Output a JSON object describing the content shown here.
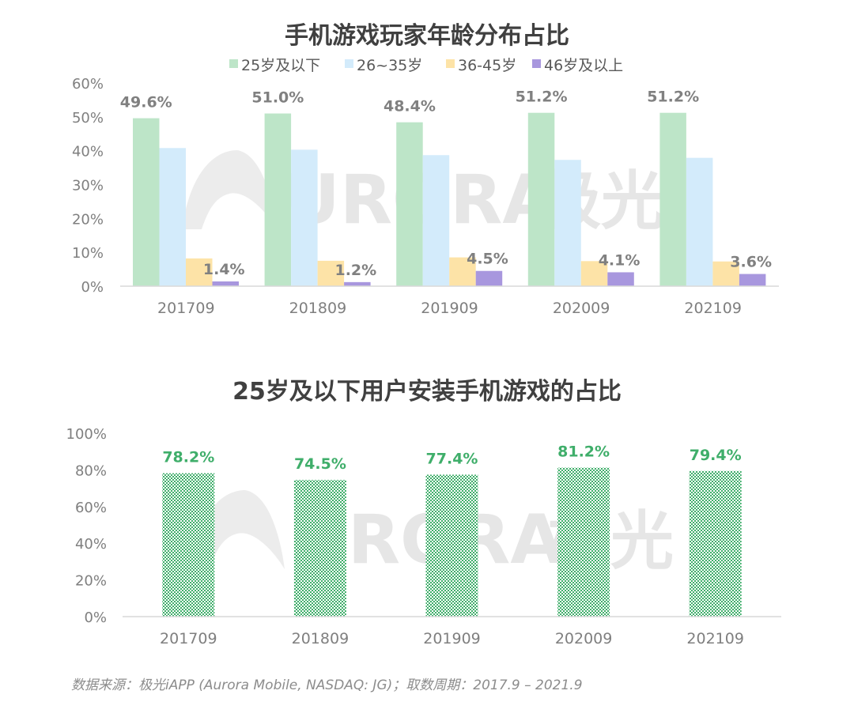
{
  "chart_data": [
    {
      "type": "bar",
      "title": "手机游戏玩家年龄分布占比",
      "categories": [
        "201709",
        "201809",
        "201909",
        "202009",
        "202109"
      ],
      "ylim": [
        0,
        60
      ],
      "y_ticks": [
        "0%",
        "10%",
        "20%",
        "30%",
        "40%",
        "50%",
        "60%"
      ],
      "legend_position": "top",
      "grid": false,
      "series": [
        {
          "name": "25岁及以下",
          "color": "#bde5c8",
          "values": [
            49.6,
            51.0,
            48.4,
            51.2,
            51.2
          ],
          "labels": [
            "49.6%",
            "51.0%",
            "48.4%",
            "51.2%",
            "51.2%"
          ]
        },
        {
          "name": "26~35岁",
          "color": "#d3ebfb",
          "values": [
            40.8,
            40.3,
            38.7,
            37.3,
            37.9
          ],
          "labels": []
        },
        {
          "name": "36-45岁",
          "color": "#fde3a7",
          "values": [
            8.2,
            7.5,
            8.5,
            7.4,
            7.3
          ],
          "labels": []
        },
        {
          "name": "46岁及以上",
          "color": "#a897de",
          "values": [
            1.4,
            1.2,
            4.5,
            4.1,
            3.6
          ],
          "labels": [
            "1.4%",
            "1.2%",
            "4.5%",
            "4.1%",
            "3.6%"
          ]
        }
      ]
    },
    {
      "type": "bar",
      "title": "25岁及以下用户安装手机游戏的占比",
      "categories": [
        "201709",
        "201809",
        "201909",
        "202009",
        "202109"
      ],
      "ylim": [
        0,
        100
      ],
      "y_ticks": [
        "0%",
        "20%",
        "40%",
        "60%",
        "80%",
        "100%"
      ],
      "grid": false,
      "series": [
        {
          "color": "#3fae6a",
          "values": [
            78.2,
            74.5,
            77.4,
            81.2,
            79.4
          ],
          "labels": [
            "78.2%",
            "74.5%",
            "77.4%",
            "81.2%",
            "79.4%"
          ]
        }
      ]
    }
  ],
  "watermark": {
    "latin": "URORA",
    "cjk": "极光"
  },
  "source_note": "数据来源：极光iAPP (Aurora Mobile, NASDAQ: JG)；取数周期：2017.9 – 2021.9"
}
